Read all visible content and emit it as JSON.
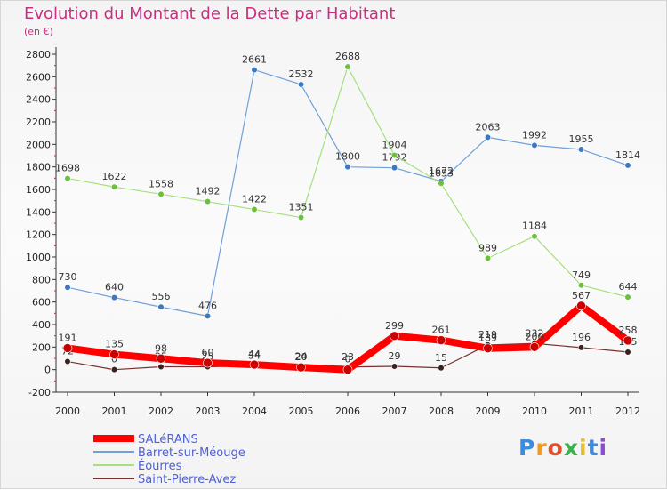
{
  "chart_data": {
    "type": "line",
    "title": "Evolution du Montant de la Dette par Habitant",
    "subtitle": "(en €)",
    "x": [
      "2000",
      "2001",
      "2002",
      "2003",
      "2004",
      "2005",
      "2006",
      "2007",
      "2008",
      "2009",
      "2010",
      "2011",
      "2012"
    ],
    "ylim": [
      -200,
      2800
    ],
    "yticks": [
      -200,
      0,
      200,
      400,
      600,
      800,
      1000,
      1200,
      1400,
      1600,
      1800,
      2000,
      2200,
      2400,
      2600,
      2800
    ],
    "grid": false,
    "legend": "bottom-left",
    "series": [
      {
        "name": "Barret-sur-Méouge",
        "color": "#6fa0d8",
        "marker": "#3a78c0",
        "width": 1.2,
        "values": [
          730,
          640,
          556,
          476,
          2661,
          2532,
          1800,
          1792,
          1672,
          2063,
          1992,
          1955,
          1814
        ],
        "labels": [
          "730",
          "640",
          "556",
          "476",
          "2661",
          "2532",
          "1800",
          "1792",
          "1672",
          "2063",
          "1992",
          "1955",
          "1814"
        ]
      },
      {
        "name": "Éourres",
        "color": "#a6e07e",
        "marker": "#6cc03c",
        "width": 1.2,
        "values": [
          1698,
          1622,
          1558,
          1492,
          1422,
          1351,
          2688,
          1904,
          1653,
          989,
          1184,
          749,
          644
        ],
        "labels": [
          "1698",
          "1622",
          "1558",
          "1492",
          "1422",
          "1351",
          "2688",
          "1904",
          "1653",
          "989",
          "1184",
          "749",
          "644"
        ]
      },
      {
        "name": "Saint-Pierre-Avez",
        "color": "#7a3030",
        "marker": "#3c2020",
        "width": 1.2,
        "values": [
          72,
          0,
          25,
          25,
          34,
          24,
          23,
          29,
          15,
          219,
          232,
          196,
          155
        ],
        "labels": [
          "72",
          "0",
          "25",
          "25",
          "34",
          "24",
          "23",
          "29",
          "15",
          "219",
          "232",
          "196",
          "155"
        ]
      },
      {
        "name": "SALéRANS",
        "color": "#ff0000",
        "marker": "#cc0000",
        "width": 8,
        "values": [
          191,
          135,
          98,
          60,
          44,
          20,
          0,
          299,
          261,
          189,
          200,
          567,
          258
        ],
        "labels": [
          "191",
          "135",
          "98",
          "60",
          "44",
          "20",
          "0",
          "299",
          "261",
          "189",
          "200",
          "567",
          "258"
        ]
      }
    ],
    "legend_order": [
      "SALéRANS",
      "Barret-sur-Méouge",
      "Éourres",
      "Saint-Pierre-Avez"
    ]
  },
  "logo": {
    "letters": [
      "P",
      "r",
      "o",
      "x",
      "i",
      "t",
      "i"
    ],
    "colors": [
      "#3b8be0",
      "#f29a1f",
      "#e44f2a",
      "#3ab24a",
      "#e4c120",
      "#3b8be0",
      "#8a4fd0"
    ]
  }
}
